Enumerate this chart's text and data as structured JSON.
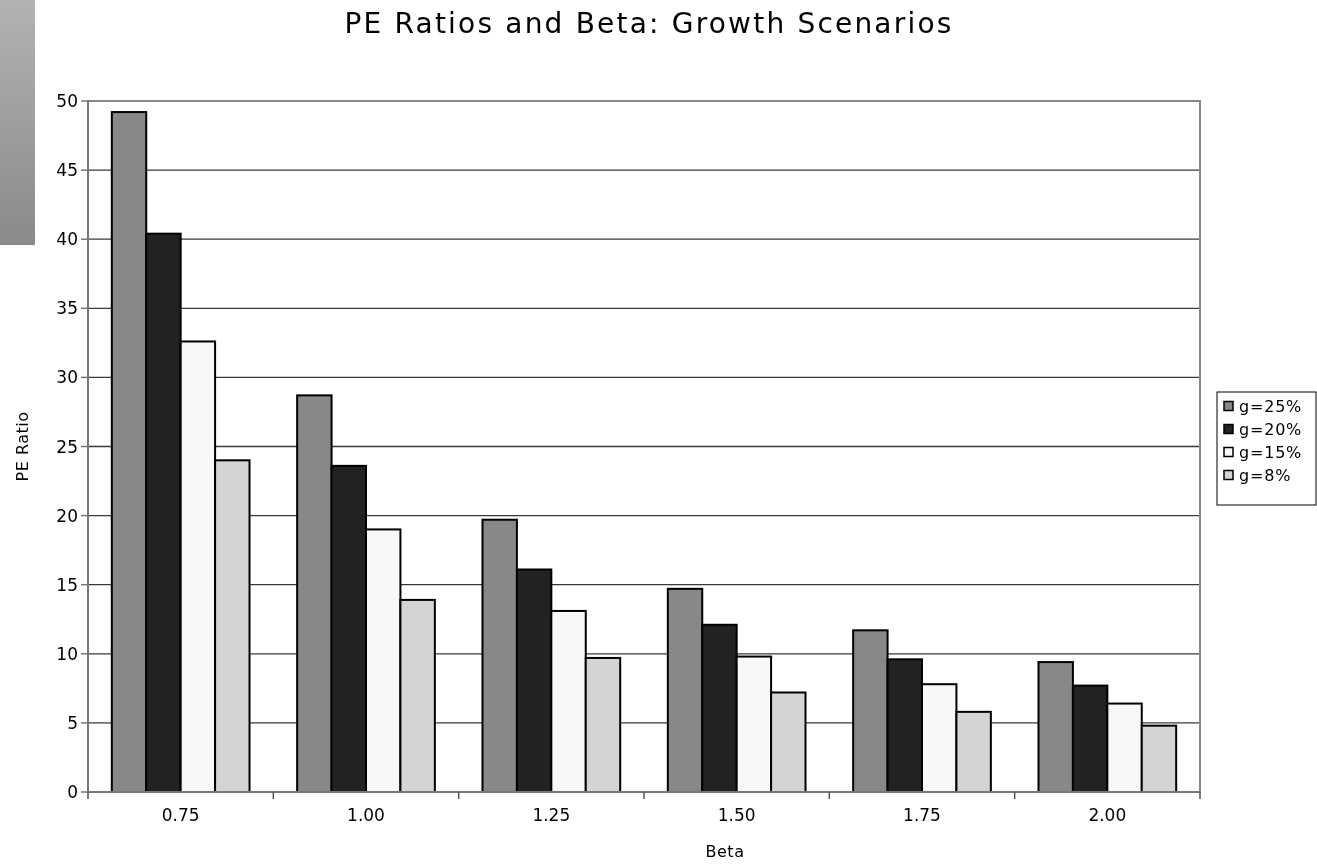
{
  "chart_data": {
    "type": "bar",
    "title": "PE Ratios and Beta: Growth Scenarios",
    "xlabel": "Beta",
    "ylabel": "PE Ratio",
    "categories": [
      "0.75",
      "1.00",
      "1.25",
      "1.50",
      "1.75",
      "2.00"
    ],
    "series": [
      {
        "name": "g=25%",
        "color": "#888888",
        "values": [
          49.2,
          28.7,
          19.7,
          14.7,
          11.7,
          9.4
        ]
      },
      {
        "name": "g=20%",
        "color": "#222222",
        "values": [
          40.4,
          23.6,
          16.1,
          12.1,
          9.6,
          7.7
        ]
      },
      {
        "name": "g=15%",
        "color": "#f8f8f8",
        "values": [
          32.6,
          19.0,
          13.1,
          9.8,
          7.8,
          6.4
        ]
      },
      {
        "name": "g=8%",
        "color": "#d4d4d4",
        "values": [
          24.0,
          13.9,
          9.7,
          7.2,
          5.8,
          4.8
        ]
      }
    ],
    "ylim": [
      0,
      50
    ],
    "yticks": [
      0,
      5,
      10,
      15,
      20,
      25,
      30,
      35,
      40,
      45,
      50
    ],
    "grid": "y",
    "legend": "right"
  }
}
